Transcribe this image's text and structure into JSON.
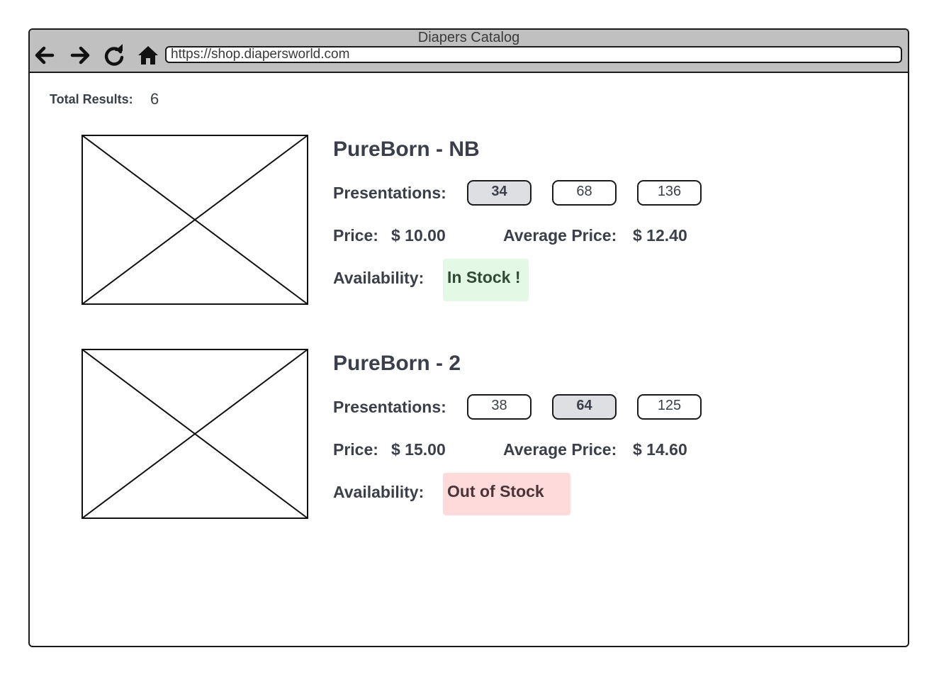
{
  "window": {
    "title": "Diapers Catalog",
    "url": "https://shop.diapersworld.com",
    "nav": {
      "back_icon": "arrow-left-icon",
      "forward_icon": "arrow-right-icon",
      "reload_icon": "reload-icon",
      "home_icon": "home-icon"
    }
  },
  "summary": {
    "total_label": "Total Results:",
    "total_value": "6"
  },
  "labels": {
    "presentations": "Presentations:",
    "price": "Price:",
    "average_price": "Average Price:",
    "availability": "Availability:"
  },
  "products": [
    {
      "name": "PureBorn - NB",
      "presentations": [
        {
          "label": "34",
          "selected": true
        },
        {
          "label": "68",
          "selected": false
        },
        {
          "label": "136",
          "selected": false
        }
      ],
      "price": "$ 10.00",
      "average_price": "$ 12.40",
      "availability": "In Stock !",
      "availability_color": "#e4f8e6"
    },
    {
      "name": "PureBorn - 2",
      "presentations": [
        {
          "label": "38",
          "selected": false
        },
        {
          "label": "64",
          "selected": true
        },
        {
          "label": "125",
          "selected": false
        }
      ],
      "price": "$ 15.00",
      "average_price": "$ 14.60",
      "availability": "Out of  Stock",
      "availability_color": "#ffdada"
    }
  ],
  "colors": {
    "chrome_bg": "#c0c0c0",
    "selected_pill": "#dedfe3",
    "text": "#3a3f4a"
  }
}
